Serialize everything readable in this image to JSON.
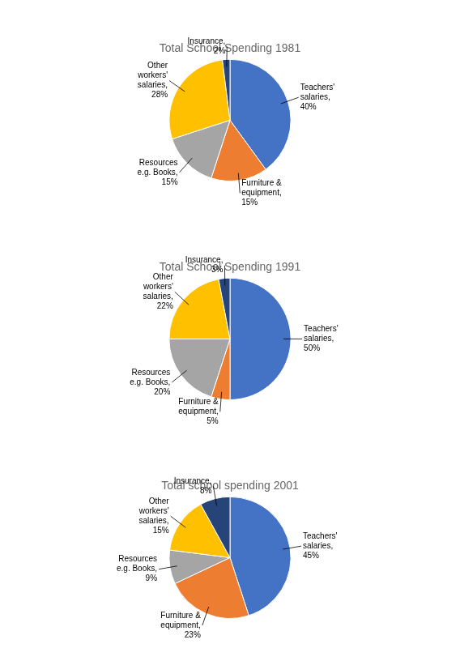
{
  "chart_data": [
    {
      "type": "pie",
      "title": "Total School Spending 1981",
      "categories": [
        "Teachers'\nsalaries,",
        "Furniture &\nequipment,",
        "Resources\ne.g. Books,",
        "Other\nworkers'\nsalaries,",
        "Insurance,"
      ],
      "values": [
        40,
        15,
        15,
        28,
        2
      ],
      "value_labels": [
        "40%",
        "15%",
        "15%",
        "28%",
        "2%"
      ],
      "colors": [
        "#4472C4",
        "#ED7D31",
        "#A5A5A5",
        "#FFC000",
        "#264478"
      ],
      "data_labels": true
    },
    {
      "type": "pie",
      "title": "Total School Spending 1991",
      "categories": [
        "Teachers'\nsalaries,",
        "Furniture &\nequipment,",
        "Resources\ne.g. Books,",
        "Other\nworkers'\nsalaries,",
        "Insurance,"
      ],
      "values": [
        50,
        5,
        20,
        22,
        3
      ],
      "value_labels": [
        "50%",
        "5%",
        "20%",
        "22%",
        "3%"
      ],
      "colors": [
        "#4472C4",
        "#ED7D31",
        "#A5A5A5",
        "#FFC000",
        "#264478"
      ],
      "data_labels": true
    },
    {
      "type": "pie",
      "title": "Total school spending 2001",
      "categories": [
        "Teachers'\nsalaries,",
        "Furniture &\nequipment,",
        "Resources\ne.g. Books,",
        "Other\nworkers'\nsalaries,",
        "Insurance,"
      ],
      "values": [
        45,
        23,
        9,
        15,
        8
      ],
      "value_labels": [
        "45%",
        "23%",
        "9%",
        "15%",
        "8%"
      ],
      "colors": [
        "#4472C4",
        "#ED7D31",
        "#A5A5A5",
        "#FFC000",
        "#264478"
      ],
      "data_labels": true
    }
  ]
}
